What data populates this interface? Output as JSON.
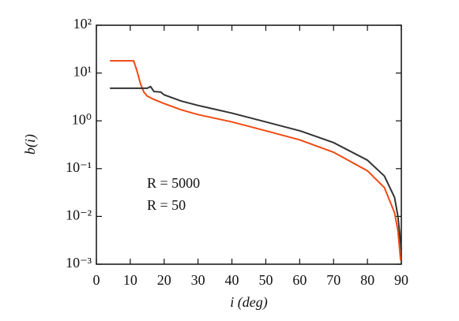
{
  "chart_data": {
    "type": "line",
    "y_label": "b(i)",
    "x_label": "i (deg)",
    "log_y": true,
    "legend_position": "lower left",
    "xlim": [
      0,
      90
    ],
    "xticks": [
      0,
      10,
      20,
      30,
      40,
      50,
      60,
      70,
      80,
      90
    ],
    "ylim": [
      0.001,
      100
    ],
    "yticks": [
      {
        "value": 0.001,
        "label": "10⁻³"
      },
      {
        "value": 0.01,
        "label": "10⁻²"
      },
      {
        "value": 0.1,
        "label": "10⁻¹"
      },
      {
        "value": 1,
        "label": "10⁰"
      },
      {
        "value": 10,
        "label": "10¹"
      },
      {
        "value": 100,
        "label": "10²"
      }
    ],
    "series": [
      {
        "name": "R = 5000",
        "color": "#f04a12",
        "x": [
          4,
          11,
          12,
          13,
          14,
          15,
          17,
          20,
          25,
          30,
          40,
          50,
          60,
          70,
          80,
          85,
          88,
          89,
          89.8
        ],
        "values": [
          18,
          18,
          11,
          6,
          4,
          3.3,
          2.8,
          2.3,
          1.7,
          1.35,
          0.95,
          0.62,
          0.4,
          0.22,
          0.09,
          0.04,
          0.012,
          0.005,
          0.0012
        ]
      },
      {
        "name": "R = 50",
        "color": "#333333",
        "x": [
          4,
          15,
          16,
          17,
          19,
          20,
          25,
          30,
          40,
          50,
          60,
          70,
          80,
          85,
          88,
          89,
          90
        ],
        "values": [
          4.8,
          4.8,
          5.2,
          4.1,
          4.0,
          3.5,
          2.6,
          2.1,
          1.45,
          0.95,
          0.62,
          0.35,
          0.15,
          0.07,
          0.025,
          0.01,
          0.002
        ]
      }
    ]
  }
}
